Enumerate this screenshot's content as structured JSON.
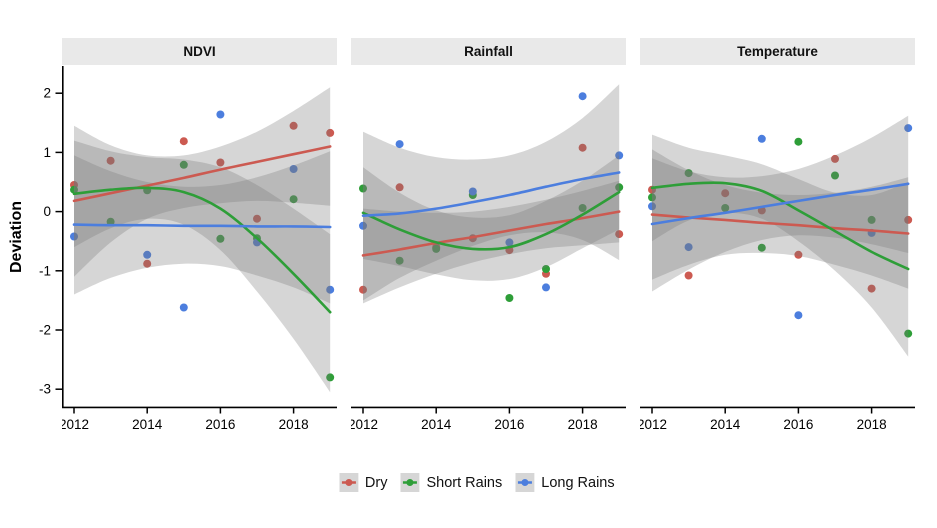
{
  "colors": {
    "dry": "#CC5A51",
    "short_rains": "#2E9E38",
    "long_rains": "#4C7EDE",
    "band": "rgba(120,120,120,0.30)",
    "strip_bg": "#E9E9E9",
    "legend_key_bg": "#D6D6D6",
    "axis": "#000000"
  },
  "legend": {
    "items": [
      {
        "label": "Dry",
        "key": "dry"
      },
      {
        "label": "Short Rains",
        "key": "short_rains"
      },
      {
        "label": "Long Rains",
        "key": "long_rains"
      }
    ]
  },
  "chart_data": {
    "type": "scatter_with_loess_smooth_faceted",
    "x": {
      "years": [
        2012,
        2013,
        2014,
        2015,
        2016,
        2017,
        2018,
        2019
      ],
      "ticks": [
        2012,
        2014,
        2016,
        2018
      ],
      "domain": [
        2011.67,
        2019.19
      ]
    },
    "y": {
      "label": "Deviation",
      "ticks": [
        2,
        1,
        0,
        -1,
        -2,
        -3
      ],
      "domain": [
        -3.32,
        2.46
      ],
      "grid": false
    },
    "legend_position": "bottom",
    "facets": [
      {
        "title": "NDVI",
        "series": [
          {
            "name": "Dry",
            "key": "dry",
            "points": [
              0.45,
              0.86,
              -0.88,
              1.19,
              0.83,
              -0.12,
              1.45,
              1.33
            ],
            "line": [
              0.18,
              0.31,
              0.44,
              0.57,
              0.71,
              0.84,
              0.97,
              1.1
            ],
            "band_upper": [
              1.45,
              1.12,
              0.95,
              0.95,
              1.1,
              1.35,
              1.7,
              2.1
            ],
            "band_lower": [
              -1.1,
              -0.52,
              -0.12,
              0.06,
              0.14,
              0.18,
              0.15,
              0.1
            ]
          },
          {
            "name": "Short Rains",
            "key": "short_rains",
            "points": [
              0.37,
              -0.17,
              0.36,
              0.79,
              -0.46,
              -0.45,
              0.21,
              -2.8
            ],
            "line": [
              0.3,
              0.37,
              0.4,
              0.33,
              0.05,
              -0.45,
              -1.05,
              -1.7
            ],
            "band_upper": [
              1.2,
              1.02,
              0.92,
              0.88,
              0.75,
              0.45,
              0.05,
              -0.38
            ],
            "band_lower": [
              -0.6,
              -0.28,
              -0.12,
              -0.22,
              -0.65,
              -1.35,
              -2.15,
              -3.05
            ]
          },
          {
            "name": "Long Rains",
            "key": "long_rains",
            "points": [
              -0.42,
              null,
              -0.73,
              -1.62,
              1.64,
              -0.52,
              0.72,
              -1.32
            ],
            "line": [
              -0.22,
              -0.23,
              -0.23,
              -0.24,
              -0.24,
              -0.25,
              -0.25,
              -0.26
            ],
            "band_upper": [
              0.95,
              0.68,
              0.5,
              0.42,
              0.45,
              0.58,
              0.78,
              1.02
            ],
            "band_lower": [
              -1.4,
              -1.12,
              -0.95,
              -0.88,
              -0.92,
              -1.08,
              -1.28,
              -1.55
            ]
          }
        ]
      },
      {
        "title": "Rainfall",
        "series": [
          {
            "name": "Dry",
            "key": "dry",
            "points": [
              -1.32,
              0.41,
              -0.6,
              -0.45,
              -0.65,
              -1.05,
              1.08,
              -0.38
            ],
            "line": [
              -0.74,
              -0.64,
              -0.53,
              -0.43,
              -0.32,
              -0.21,
              -0.11,
              0.0
            ],
            "band_upper": [
              0.05,
              0.0,
              -0.02,
              0.0,
              0.08,
              0.2,
              0.35,
              0.52
            ],
            "band_lower": [
              -1.55,
              -1.28,
              -1.05,
              -0.86,
              -0.72,
              -0.62,
              -0.57,
              -0.52
            ]
          },
          {
            "name": "Short Rains",
            "key": "short_rains",
            "points": [
              0.39,
              -0.83,
              -0.63,
              0.28,
              -1.46,
              -0.97,
              0.06,
              0.41
            ],
            "line": [
              -0.02,
              -0.3,
              -0.52,
              -0.63,
              -0.6,
              -0.38,
              -0.05,
              0.33
            ],
            "band_upper": [
              0.75,
              0.32,
              0.02,
              -0.1,
              -0.06,
              0.18,
              0.52,
              0.95
            ],
            "band_lower": [
              -0.8,
              -0.92,
              -1.06,
              -1.16,
              -1.14,
              -0.94,
              -0.62,
              -0.3
            ]
          },
          {
            "name": "Long Rains",
            "key": "long_rains",
            "points": [
              -0.24,
              1.14,
              null,
              0.34,
              -0.52,
              -1.28,
              1.95,
              0.95
            ],
            "line": [
              -0.07,
              -0.03,
              0.05,
              0.16,
              0.28,
              0.42,
              0.55,
              0.66
            ],
            "band_upper": [
              1.35,
              1.08,
              0.92,
              0.88,
              0.95,
              1.18,
              1.58,
              2.15
            ],
            "band_lower": [
              -1.5,
              -1.12,
              -0.83,
              -0.58,
              -0.4,
              -0.35,
              -0.48,
              -0.82
            ]
          }
        ]
      },
      {
        "title": "Temperature",
        "series": [
          {
            "name": "Dry",
            "key": "dry",
            "points": [
              0.37,
              -1.08,
              0.31,
              0.02,
              -0.73,
              0.89,
              -1.3,
              -0.14
            ],
            "line": [
              -0.05,
              -0.1,
              -0.14,
              -0.19,
              -0.23,
              -0.28,
              -0.32,
              -0.37
            ],
            "band_upper": [
              1.05,
              0.7,
              0.45,
              0.32,
              0.28,
              0.32,
              0.42,
              0.58
            ],
            "band_lower": [
              -1.15,
              -0.9,
              -0.73,
              -0.7,
              -0.75,
              -0.9,
              -1.08,
              -1.3
            ]
          },
          {
            "name": "Short Rains",
            "key": "short_rains",
            "points": [
              0.24,
              0.65,
              0.06,
              -0.61,
              1.18,
              0.61,
              -0.14,
              -2.06
            ],
            "line": [
              0.4,
              0.47,
              0.48,
              0.35,
              0.02,
              -0.33,
              -0.68,
              -0.97
            ],
            "band_upper": [
              1.3,
              1.08,
              0.95,
              0.8,
              0.55,
              0.32,
              0.28,
              0.5
            ],
            "band_lower": [
              -0.5,
              -0.15,
              -0.02,
              -0.12,
              -0.5,
              -1.0,
              -1.62,
              -2.45
            ]
          },
          {
            "name": "Long Rains",
            "key": "long_rains",
            "points": [
              0.09,
              -0.6,
              null,
              1.23,
              -1.75,
              null,
              -0.36,
              1.41
            ],
            "line": [
              -0.21,
              -0.11,
              -0.02,
              0.08,
              0.18,
              0.28,
              0.37,
              0.47
            ],
            "band_upper": [
              0.9,
              0.68,
              0.58,
              0.6,
              0.72,
              0.95,
              1.25,
              1.62
            ],
            "band_lower": [
              -1.35,
              -0.98,
              -0.68,
              -0.48,
              -0.4,
              -0.44,
              -0.55,
              -0.7
            ]
          }
        ]
      }
    ]
  }
}
